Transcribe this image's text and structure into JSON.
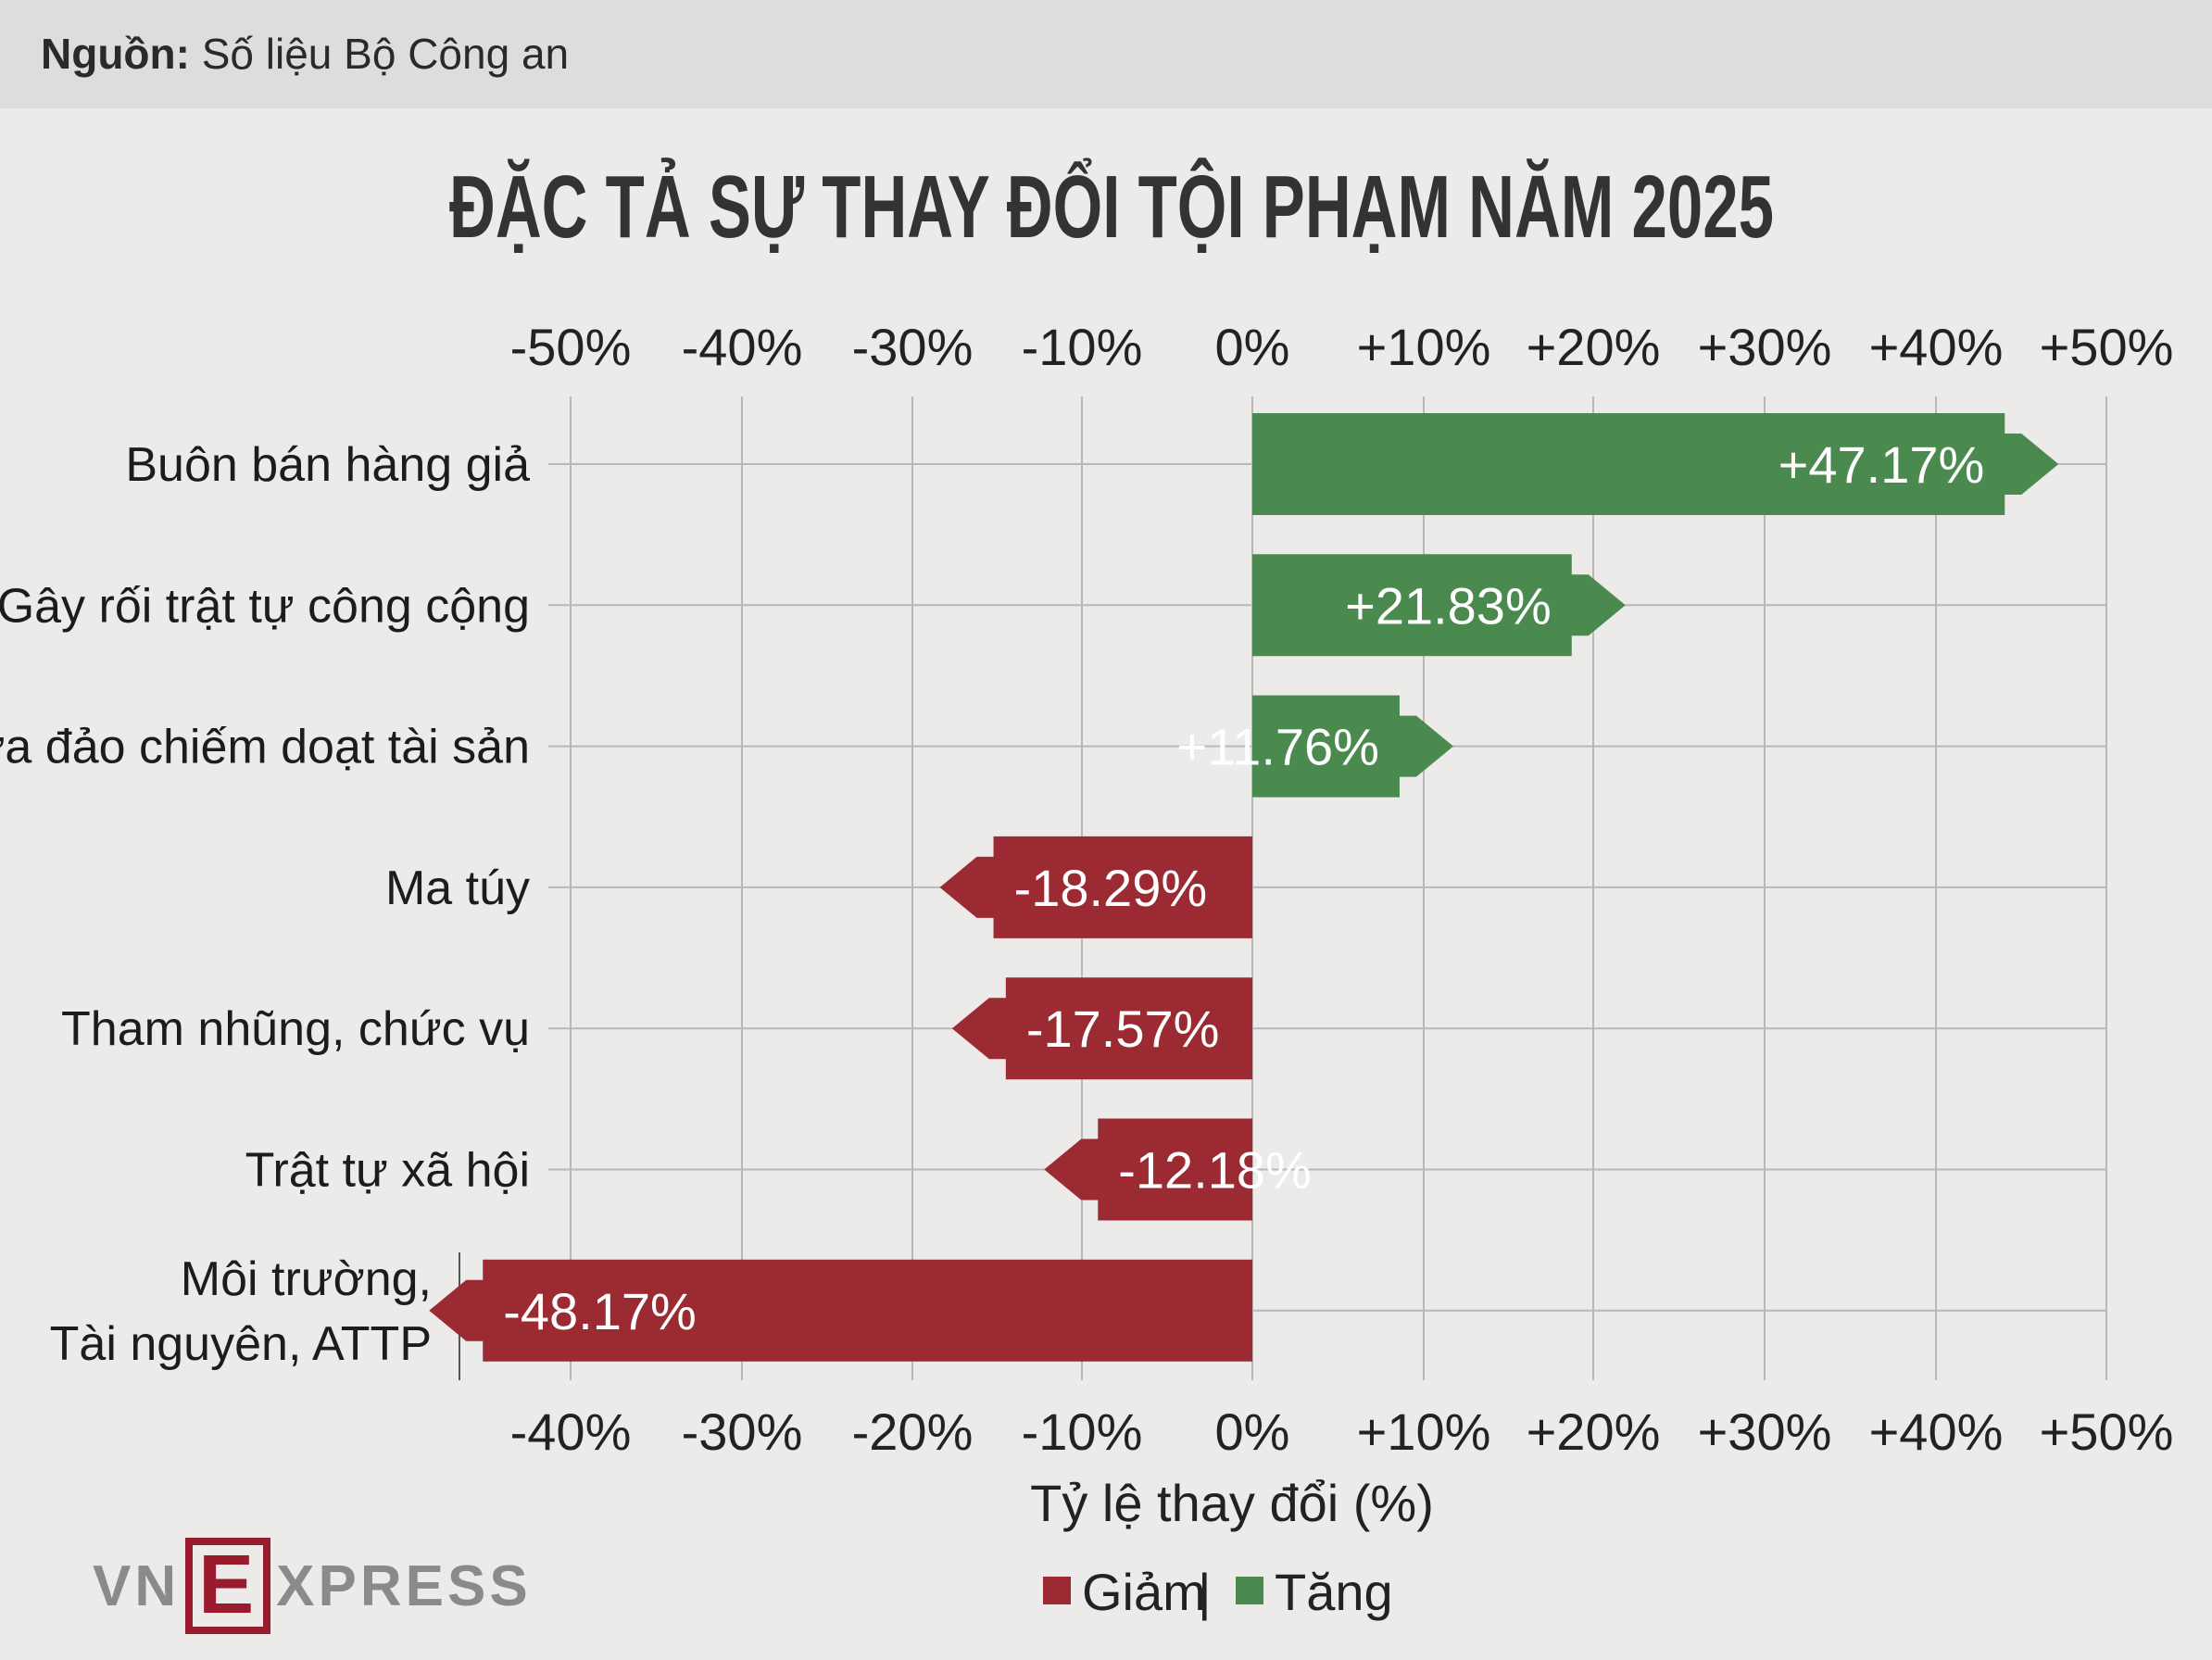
{
  "source": {
    "label": "Nguồn:",
    "text": "Số liệu Bộ Công an"
  },
  "brand": {
    "left": "VN",
    "mark": "E",
    "right": "XPRESS"
  },
  "chart_data": {
    "type": "bar",
    "orientation": "horizontal",
    "title": "ĐẶC TẢ SỰ THAY ĐỔI TỘI PHẠM NĂM 2025",
    "xlabel": "Tỷ lệ thay đổi (%)",
    "ylabel": "",
    "xlim": [
      -50,
      50
    ],
    "top_ticks": [
      "-50%",
      "-40%",
      "-30%",
      "-10%",
      "0%",
      "+10%",
      "+20%",
      "+30%",
      "+40%",
      "+50%"
    ],
    "bottom_ticks": [
      "-40%",
      "-30%",
      "-20%",
      "-10%",
      "0%",
      "+10%",
      "+20%",
      "+30%",
      "+40%",
      "+50%"
    ],
    "grid": true,
    "categories": [
      [
        "Buôn bán hàng giả"
      ],
      [
        "Gây rối trật tự công cộng"
      ],
      [
        "Lừa đảo chiếm doạt tài sản"
      ],
      [
        "Ma túy"
      ],
      [
        "Tham nhũng, chức vụ"
      ],
      [
        "Trật tự xã hội"
      ],
      [
        "Môi trường,",
        "Tài nguyên, ATTP"
      ]
    ],
    "values": [
      47.17,
      21.83,
      11.76,
      -18.29,
      -17.57,
      -12.18,
      -48.17
    ],
    "value_labels": [
      "+47.17%",
      "+21.83%",
      "+11.76%",
      "-18.29%",
      "-17.57%",
      "-12.18%",
      "-48.17%"
    ],
    "colors": {
      "increase": "#4a8a4f",
      "decrease": "#9b2a32",
      "grid": "#b8b8b8"
    },
    "legend": {
      "placement": "bottom",
      "items": [
        {
          "label": "Giảm",
          "color": "#9b2a32"
        },
        {
          "label": "Tăng",
          "color": "#4a8a4f"
        }
      ],
      "separator": "|"
    }
  }
}
